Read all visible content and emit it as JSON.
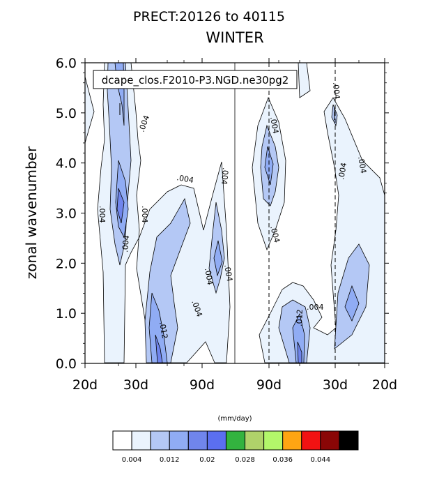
{
  "chart_data": {
    "type": "heatmap",
    "title": "PRECT:20126 to 40115",
    "subtitle": "WINTER",
    "legend_label": "dcape_clos.F2010-P3.NGD.ne30pg2",
    "ylabel": "zonal wavenumber",
    "xlabel": "",
    "ylim": [
      0,
      6
    ],
    "grid": false,
    "x_tick_labels": [
      "20d",
      "30d",
      "90d",
      "90d",
      "30d",
      "20d"
    ],
    "y_tick_labels": [
      "0.0",
      "1.0",
      "2.0",
      "3.0",
      "4.0",
      "5.0",
      "6.0"
    ],
    "y_ticks": [
      0,
      1,
      2,
      3,
      4,
      5,
      6
    ],
    "dashed_reference_lines": [
      "90d",
      "30d"
    ],
    "contour_interval": 0.004,
    "contour_labels": [
      ".004",
      ".004",
      ".004",
      ".004",
      ".004",
      ".004",
      ".004",
      ".004",
      ".004",
      ".004",
      ".004",
      ".004",
      ".004",
      ".004",
      ".012",
      ".012"
    ],
    "colorbar": {
      "units": "(mm/day)",
      "colors": [
        "#ffffff",
        "#eaf3fd",
        "#b4c8f5",
        "#90acf4",
        "#7085ec",
        "#5b6ff0",
        "#33b33f",
        "#b0d26a",
        "#b3f76a",
        "#fea513",
        "#f21212",
        "#8a0606",
        "#000000"
      ],
      "tick_labels": [
        "0.004",
        "0.012",
        "0.02",
        "0.028",
        "0.036",
        "0.044"
      ]
    }
  }
}
